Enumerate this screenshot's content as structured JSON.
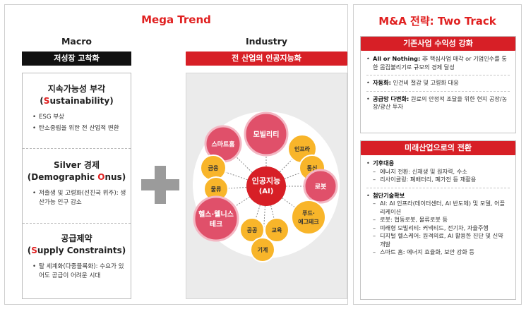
{
  "left": {
    "title": "Mega Trend",
    "macro": {
      "heading": "Macro",
      "bar": "저성장 고착화",
      "sections": [
        {
          "title_line1": "지속가능성 부각",
          "title_pre": "(",
          "title_hl": "S",
          "title_post": "ustainability)",
          "bullets": [
            "ESG 부상",
            "탄소중립을 위한 전 산업적 변환"
          ]
        },
        {
          "title_line1": "Silver 경제",
          "title_pre": "(Demographic ",
          "title_hl": "O",
          "title_post": "nus)",
          "bullets": [
            "저출생 및 고령화(선진국 위주): 생산가능 인구 감소"
          ]
        },
        {
          "title_line1": "공급제약",
          "title_pre": "(",
          "title_hl": "S",
          "title_post": "upply Constraints)",
          "bullets": [
            "탈 세계화(다중블록화): 수요가 있어도 공급이 어려운 시대"
          ]
        }
      ]
    },
    "industry": {
      "heading": "Industry",
      "bar": "전 산업의 인공지능화",
      "center_line1": "인공지능",
      "center_line2": "(AI)",
      "bubbles": [
        {
          "label": "모빌리티",
          "kind": "pink"
        },
        {
          "label": "스마트홈",
          "kind": "pink"
        },
        {
          "label": "인프라",
          "kind": "yellow"
        },
        {
          "label": "금융",
          "kind": "yellow"
        },
        {
          "label": "통신",
          "kind": "yellow"
        },
        {
          "label": "물류",
          "kind": "yellow"
        },
        {
          "label": "로봇",
          "kind": "pink"
        },
        {
          "label": "헬스·웰니스",
          "label2": "테크",
          "kind": "pink"
        },
        {
          "label": "푸드·",
          "label2": "애그테크",
          "kind": "yellow"
        },
        {
          "label": "공공",
          "kind": "yellow"
        },
        {
          "label": "교육",
          "kind": "yellow"
        },
        {
          "label": "기계",
          "kind": "yellow"
        }
      ],
      "colors": {
        "pink": "#e0506a",
        "yellow": "#f8b52a",
        "center": "#d71f26"
      }
    }
  },
  "right": {
    "title": "M&A 전략: Two Track",
    "track1": {
      "bar": "기존사업 수익성 강화",
      "items": [
        {
          "bold": "All or Nothing:",
          "text": " 非 핵심사업 매각 or 기업인수를 통한 몸집불리기로 규모의 경제 달성"
        },
        {
          "bold": "자동화:",
          "text": " 인건비 절감 및 고령화 대응"
        },
        {
          "bold": "공급망 다변화:",
          "text": " 원료의 안정적 조달을 위한 현지 공장/농장/광산 투자"
        }
      ]
    },
    "track2": {
      "bar": "미래산업으로의 전환",
      "groups": [
        {
          "head": "기후대응",
          "subs": [
            "에너지 전환: 신재생 및 원자력, 수소",
            "리사이클링: 폐배터리, 폐가전 등 재활용"
          ]
        },
        {
          "head": "첨단기술확보",
          "subs": [
            "AI: AI 인프라(데이터센터, AI 반도체) 및 모델, 어플리케이션",
            "로봇: 협동로봇, 물류로봇 등",
            "미래형 모빌리티: 커넥티드, 전기차, 자율주행",
            "디지털 헬스케어: 원격의료, AI 활용한 진단 및 신약 개발",
            "스마트 홈: 에너지 효율화, 보안 강화 등"
          ]
        }
      ]
    }
  },
  "accent": {
    "red": "#d71f26",
    "title_red": "#e02020",
    "plus_gray": "#9b9b9b"
  }
}
